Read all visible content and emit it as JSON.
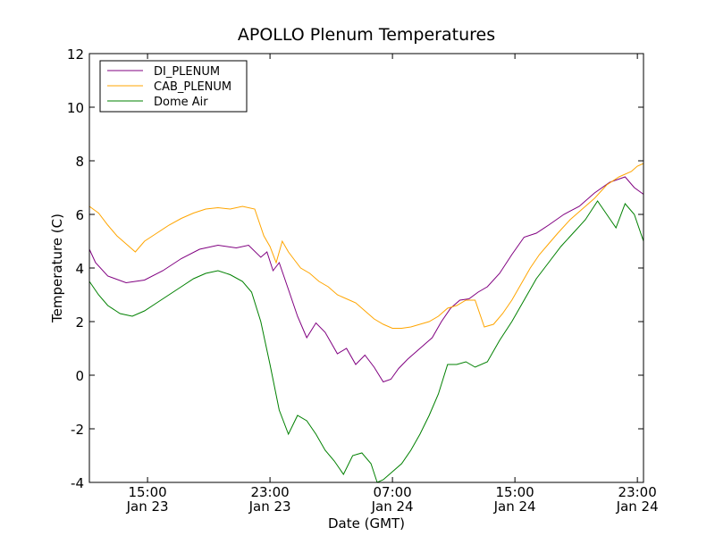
{
  "chart_data": {
    "type": "line",
    "title": "APOLLO Plenum Temperatures",
    "xlabel": "Date (GMT)",
    "ylabel": "Temperature (C)",
    "ylim": [
      -4,
      12
    ],
    "xlim_hours": [
      11.2,
      47.4
    ],
    "y_ticks": [
      -4,
      -2,
      0,
      2,
      4,
      6,
      8,
      10,
      12
    ],
    "x_ticks": [
      {
        "hours": 15,
        "time": "15:00",
        "date": "Jan 23"
      },
      {
        "hours": 23,
        "time": "23:00",
        "date": "Jan 23"
      },
      {
        "hours": 31,
        "time": "07:00",
        "date": "Jan 24"
      },
      {
        "hours": 39,
        "time": "15:00",
        "date": "Jan 24"
      },
      {
        "hours": 47,
        "time": "23:00",
        "date": "Jan 24"
      }
    ],
    "legend_position": "top-left",
    "series": [
      {
        "name": "DI_PLENUM",
        "color": "#800080",
        "x": [
          11.2,
          11.6,
          12.4,
          13.6,
          14.8,
          16.0,
          17.2,
          18.4,
          19.6,
          20.8,
          21.6,
          22.4,
          22.8,
          23.2,
          23.6,
          24.2,
          24.8,
          25.4,
          26.0,
          26.6,
          27.4,
          28.0,
          28.6,
          29.2,
          29.8,
          30.4,
          30.9,
          31.4,
          32.0,
          32.8,
          33.6,
          34.2,
          34.8,
          35.4,
          36.0,
          36.6,
          37.2,
          38.0,
          38.8,
          39.6,
          40.4,
          41.2,
          42.2,
          43.2,
          44.2,
          45.2,
          46.2,
          46.8,
          47.4
        ],
        "values": [
          4.7,
          4.2,
          3.7,
          3.45,
          3.55,
          3.9,
          4.35,
          4.7,
          4.85,
          4.75,
          4.85,
          4.4,
          4.6,
          3.9,
          4.2,
          3.2,
          2.2,
          1.4,
          1.95,
          1.6,
          0.8,
          1.0,
          0.4,
          0.75,
          0.3,
          -0.25,
          -0.15,
          0.25,
          0.6,
          1.0,
          1.4,
          2.0,
          2.5,
          2.8,
          2.85,
          3.1,
          3.3,
          3.8,
          4.5,
          5.15,
          5.3,
          5.6,
          6.0,
          6.3,
          6.8,
          7.2,
          7.4,
          7.0,
          6.75
        ]
      },
      {
        "name": "CAB_PLENUM",
        "color": "#ffa500",
        "x": [
          11.2,
          11.8,
          12.4,
          13.0,
          13.6,
          14.2,
          14.8,
          15.6,
          16.4,
          17.2,
          18.0,
          18.8,
          19.6,
          20.4,
          21.2,
          22.0,
          22.6,
          23.0,
          23.4,
          23.8,
          24.2,
          24.6,
          25.0,
          25.6,
          26.2,
          26.8,
          27.4,
          28.0,
          28.6,
          29.2,
          29.8,
          30.4,
          31.0,
          31.6,
          32.2,
          32.8,
          33.4,
          34.0,
          34.6,
          35.2,
          35.8,
          36.4,
          37.0,
          37.6,
          38.2,
          38.8,
          39.4,
          40.0,
          40.6,
          41.2,
          41.8,
          42.6,
          43.4,
          44.2,
          45.0,
          45.8,
          46.6,
          47.0,
          47.4
        ],
        "values": [
          6.3,
          6.05,
          5.6,
          5.2,
          4.9,
          4.6,
          5.0,
          5.3,
          5.6,
          5.85,
          6.05,
          6.2,
          6.25,
          6.2,
          6.3,
          6.2,
          5.2,
          4.8,
          4.2,
          5.0,
          4.6,
          4.3,
          4.0,
          3.8,
          3.5,
          3.3,
          3.0,
          2.85,
          2.7,
          2.4,
          2.1,
          1.9,
          1.75,
          1.75,
          1.8,
          1.9,
          2.0,
          2.2,
          2.5,
          2.6,
          2.8,
          2.8,
          1.8,
          1.9,
          2.3,
          2.8,
          3.4,
          4.0,
          4.5,
          4.9,
          5.3,
          5.8,
          6.2,
          6.6,
          7.1,
          7.4,
          7.6,
          7.8,
          7.9
        ]
      },
      {
        "name": "Dome Air",
        "color": "#008000",
        "x": [
          11.2,
          11.8,
          12.4,
          13.2,
          14.0,
          14.8,
          15.6,
          16.4,
          17.2,
          18.0,
          18.8,
          19.6,
          20.4,
          21.2,
          21.8,
          22.4,
          23.0,
          23.6,
          24.2,
          24.8,
          25.4,
          26.0,
          26.6,
          27.2,
          27.8,
          28.4,
          29.0,
          29.6,
          30.0,
          30.4,
          31.0,
          31.6,
          32.2,
          32.8,
          33.4,
          34.0,
          34.6,
          35.2,
          35.8,
          36.4,
          37.2,
          38.0,
          38.8,
          39.6,
          40.4,
          41.2,
          42.0,
          42.8,
          43.6,
          44.4,
          45.0,
          45.6,
          46.2,
          46.8,
          47.4
        ],
        "values": [
          3.5,
          3.0,
          2.6,
          2.3,
          2.2,
          2.4,
          2.7,
          3.0,
          3.3,
          3.6,
          3.8,
          3.9,
          3.75,
          3.5,
          3.1,
          2.0,
          0.4,
          -1.3,
          -2.2,
          -1.5,
          -1.7,
          -2.2,
          -2.8,
          -3.2,
          -3.7,
          -3.0,
          -2.9,
          -3.3,
          -4.0,
          -3.9,
          -3.6,
          -3.3,
          -2.8,
          -2.2,
          -1.5,
          -0.7,
          0.4,
          0.4,
          0.5,
          0.3,
          0.5,
          1.3,
          2.0,
          2.8,
          3.6,
          4.2,
          4.8,
          5.3,
          5.8,
          6.5,
          6.0,
          5.5,
          6.4,
          6.0,
          5.0
        ]
      }
    ]
  }
}
